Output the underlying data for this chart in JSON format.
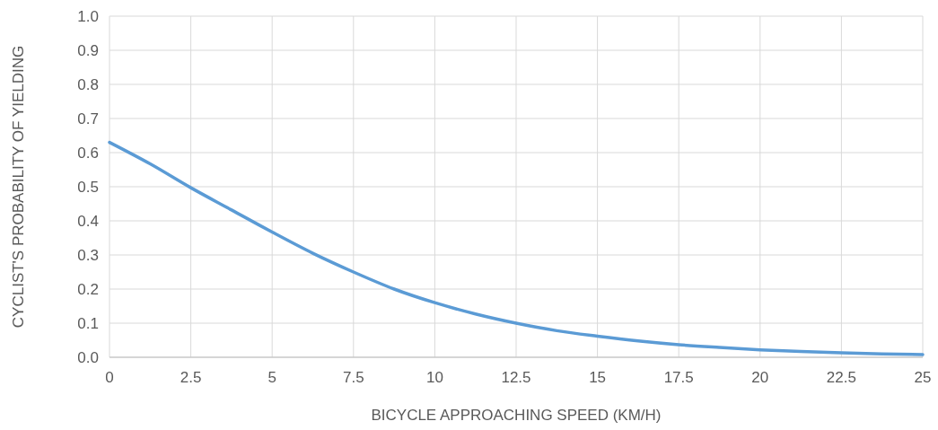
{
  "chart_data": {
    "type": "line",
    "xlabel": "BICYCLE APPROACHING SPEED (KM/H)",
    "ylabel": "CYCLIST'S PROBABILITY OF YIELDING",
    "x": [
      0,
      1.25,
      2.5,
      3.75,
      5,
      6.25,
      7.5,
      8.75,
      10,
      11.25,
      12.5,
      13.75,
      15,
      16.25,
      17.5,
      18.75,
      20,
      21.25,
      22.5,
      23.75,
      25
    ],
    "series": [
      {
        "color": "#5b9bd5",
        "values": [
          0.63,
          0.567,
          0.497,
          0.432,
          0.367,
          0.305,
          0.25,
          0.2,
          0.16,
          0.127,
          0.1,
          0.078,
          0.062,
          0.048,
          0.037,
          0.029,
          0.022,
          0.017,
          0.013,
          0.01,
          0.008
        ]
      }
    ],
    "xlim": [
      0,
      25
    ],
    "xticks": [
      0,
      2.5,
      5,
      7.5,
      10,
      12.5,
      15,
      17.5,
      20,
      22.5,
      25
    ],
    "ylim": [
      0,
      1
    ],
    "yticks": [
      {
        "value": 0,
        "label": "0.0"
      },
      0.1,
      0.2,
      0.3,
      0.4,
      0.5,
      0.6,
      0.7,
      0.8,
      0.9,
      {
        "value": 1,
        "label": "1.0"
      }
    ],
    "grid": true,
    "marker": "none",
    "line_style": "solid"
  }
}
